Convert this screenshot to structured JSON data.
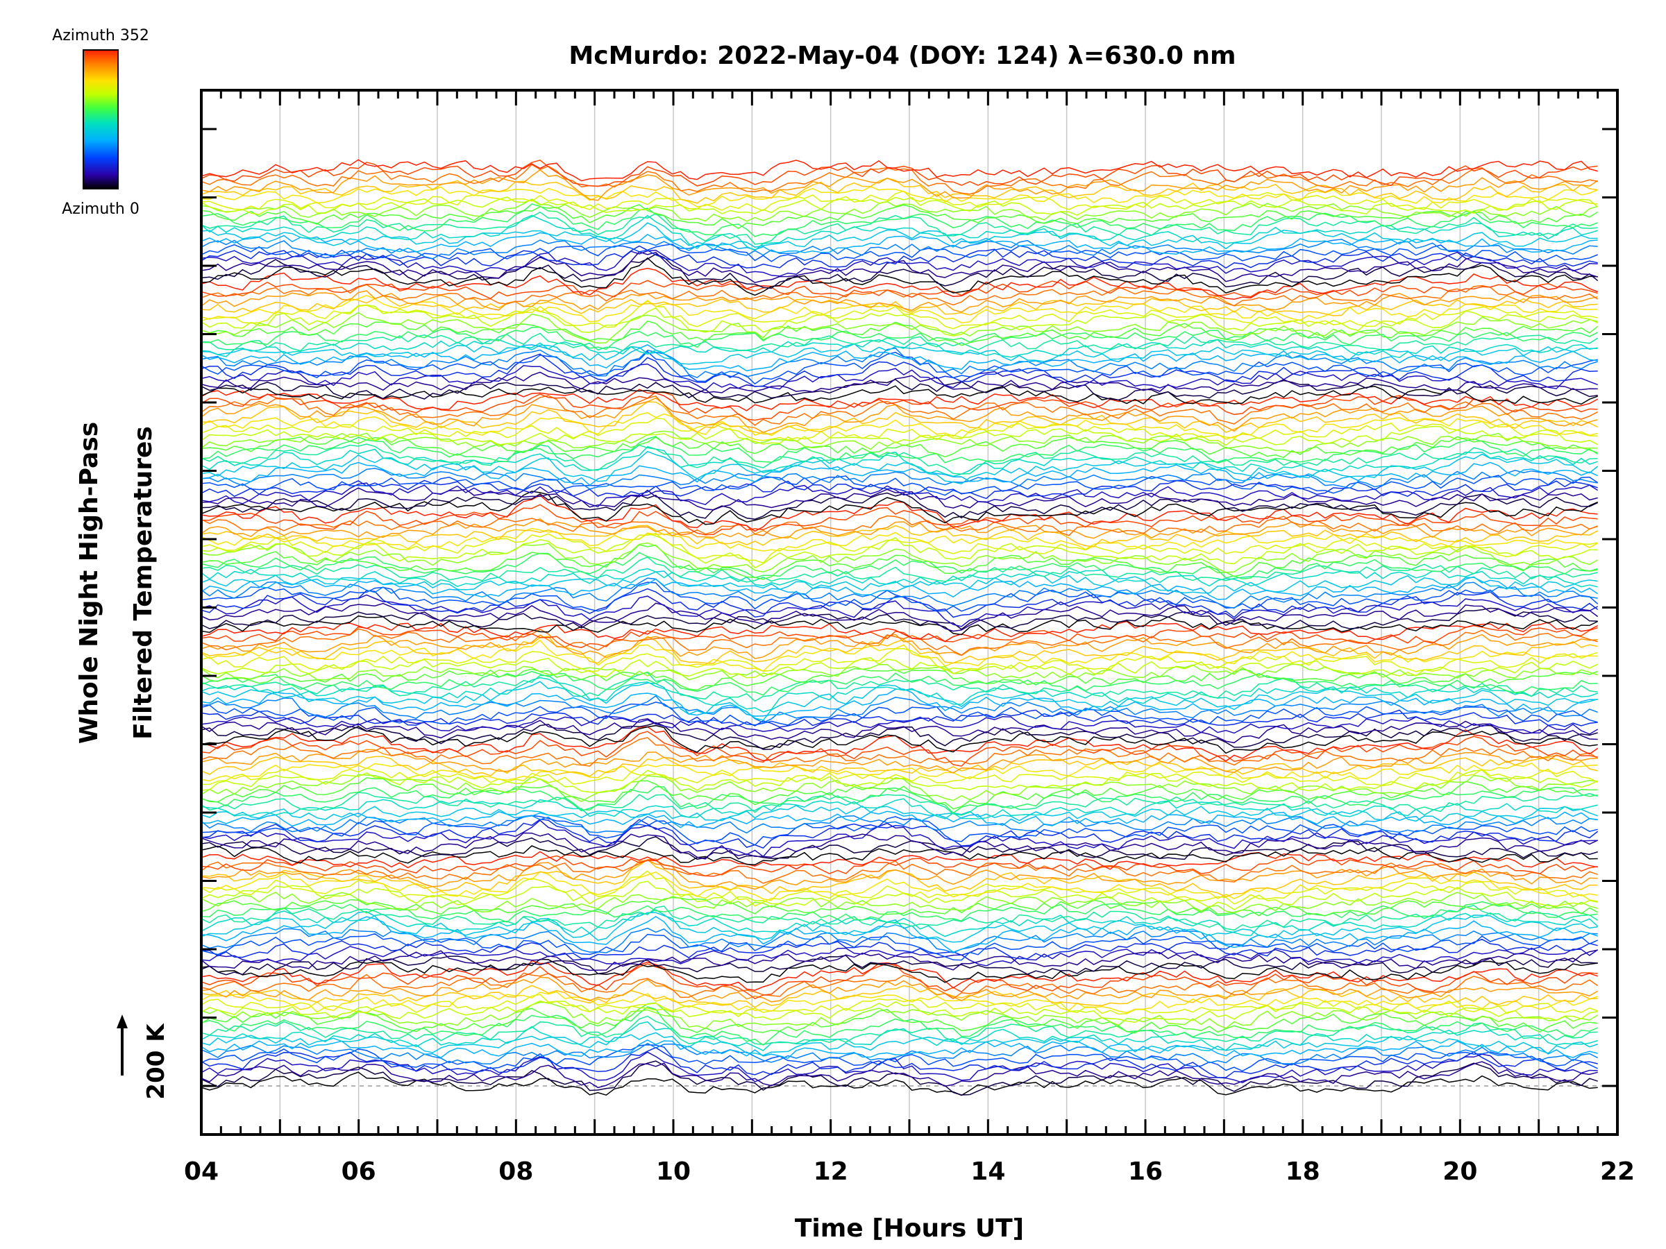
{
  "chart_data": {
    "type": "line",
    "title": "McMurdo: 2022-May-04 (DOY: 124) λ=630.0 nm",
    "xlabel": "Time [Hours UT]",
    "ylabel_line1": "Whole Night High-Pass",
    "ylabel_line2": "Filtered Temperatures",
    "xlim": [
      4,
      22
    ],
    "x_ticks": [
      "04",
      "06",
      "08",
      "10",
      "12",
      "14",
      "16",
      "18",
      "20",
      "22"
    ],
    "x_start_hours": 4.0,
    "x_end_hours": 21.75,
    "series_count": 176,
    "stack_spacing_k": 20,
    "scale_bar_label": "200 K",
    "scale_bar_k": 200,
    "grid": "vertical dotted every hour",
    "colorbar": {
      "top_label": "Azimuth  352",
      "bottom_label": "Azimuth  0",
      "colormap": "rainbow",
      "stops": [
        "#000000",
        "#2a00a8",
        "#0040ff",
        "#00b0ff",
        "#00e0c0",
        "#40ff40",
        "#c0ff00",
        "#ffe000",
        "#ff8000",
        "#ff2000"
      ]
    },
    "notes": "Stacked azimuth traces of high-pass filtered 630.0 nm temperature, colored by azimuth 0 (black/blue) to 352 (red)"
  }
}
